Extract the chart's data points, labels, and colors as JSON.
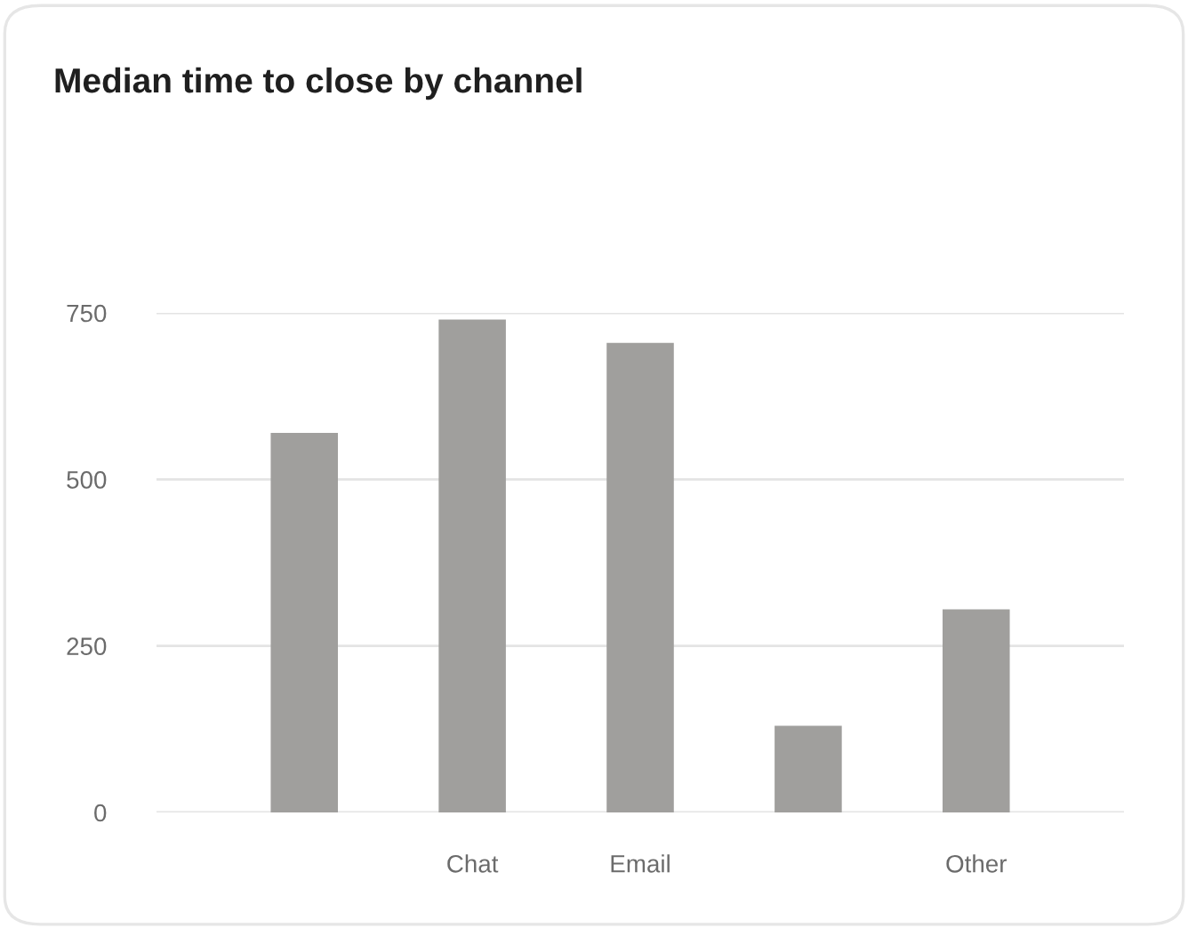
{
  "chart_data": {
    "type": "bar",
    "title": "Median time to close by channel",
    "categories": [
      null,
      "Chat",
      "Email",
      null,
      "Other"
    ],
    "values": [
      570,
      740,
      705,
      130,
      305
    ],
    "color": "#a09f9d",
    "ylim": [
      0,
      750
    ],
    "yticks": [
      0,
      250,
      500,
      750
    ],
    "grid": "y"
  }
}
